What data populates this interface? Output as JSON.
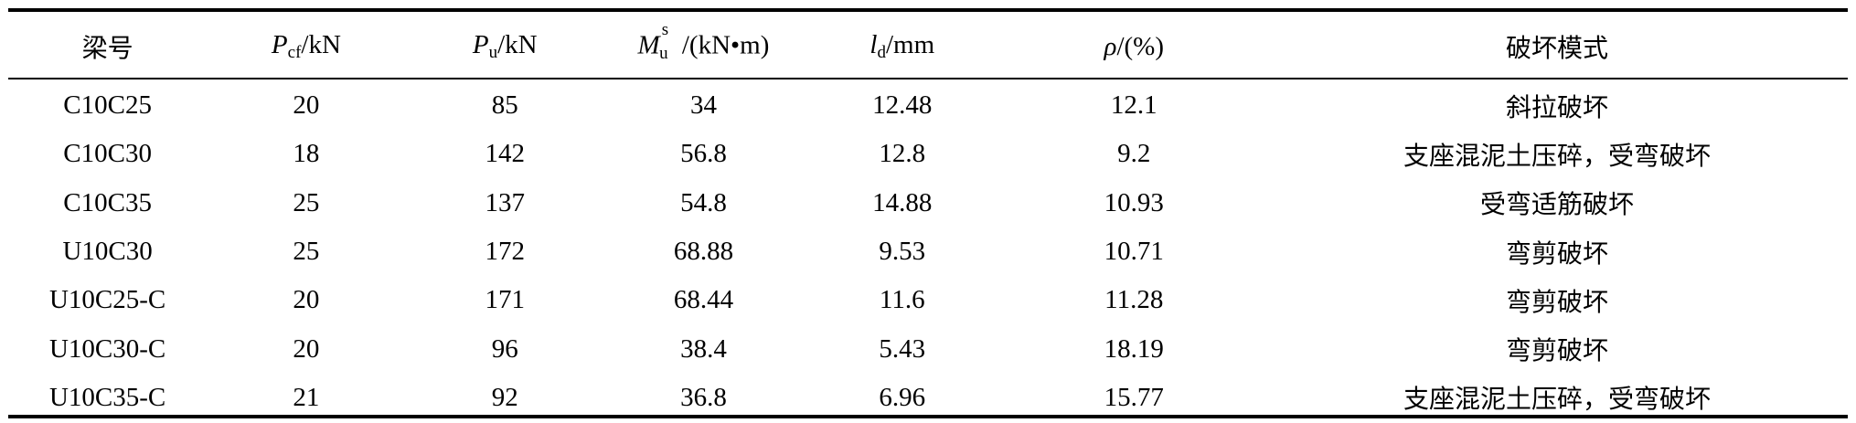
{
  "table": {
    "headers": {
      "beam": "梁号",
      "pcf_sym": "P",
      "pcf_sub": "cf",
      "pcf_unit": "/kN",
      "pu_sym": "P",
      "pu_sub": "u",
      "pu_unit": "/kN",
      "mu_sym": "M",
      "mu_sup": "s",
      "mu_sub": "u",
      "mu_unit": " /(kN•m)",
      "ld_sym": "l",
      "ld_sub": "d",
      "ld_unit": "/mm",
      "rho_sym": "ρ",
      "rho_unit": "/(%)",
      "mode": "破坏模式"
    },
    "rows": [
      {
        "beam": "C10C25",
        "pcf": "20",
        "pu": "85",
        "mu": "34",
        "ld": "12.48",
        "rho": "12.1",
        "mode": "斜拉破坏"
      },
      {
        "beam": "C10C30",
        "pcf": "18",
        "pu": "142",
        "mu": "56.8",
        "ld": "12.8",
        "rho": "9.2",
        "mode": "支座混泥土压碎，受弯破坏"
      },
      {
        "beam": "C10C35",
        "pcf": "25",
        "pu": "137",
        "mu": "54.8",
        "ld": "14.88",
        "rho": "10.93",
        "mode": "受弯适筋破坏"
      },
      {
        "beam": "U10C30",
        "pcf": "25",
        "pu": "172",
        "mu": "68.88",
        "ld": "9.53",
        "rho": "10.71",
        "mode": "弯剪破坏"
      },
      {
        "beam": "U10C25-C",
        "pcf": "20",
        "pu": "171",
        "mu": "68.44",
        "ld": "11.6",
        "rho": "11.28",
        "mode": "弯剪破坏"
      },
      {
        "beam": "U10C30-C",
        "pcf": "20",
        "pu": "96",
        "mu": "38.4",
        "ld": "5.43",
        "rho": "18.19",
        "mode": "弯剪破坏"
      },
      {
        "beam": "U10C35-C",
        "pcf": "21",
        "pu": "92",
        "mu": "36.8",
        "ld": "6.96",
        "rho": "15.77",
        "mode": "支座混泥土压碎，受弯破坏"
      }
    ]
  }
}
